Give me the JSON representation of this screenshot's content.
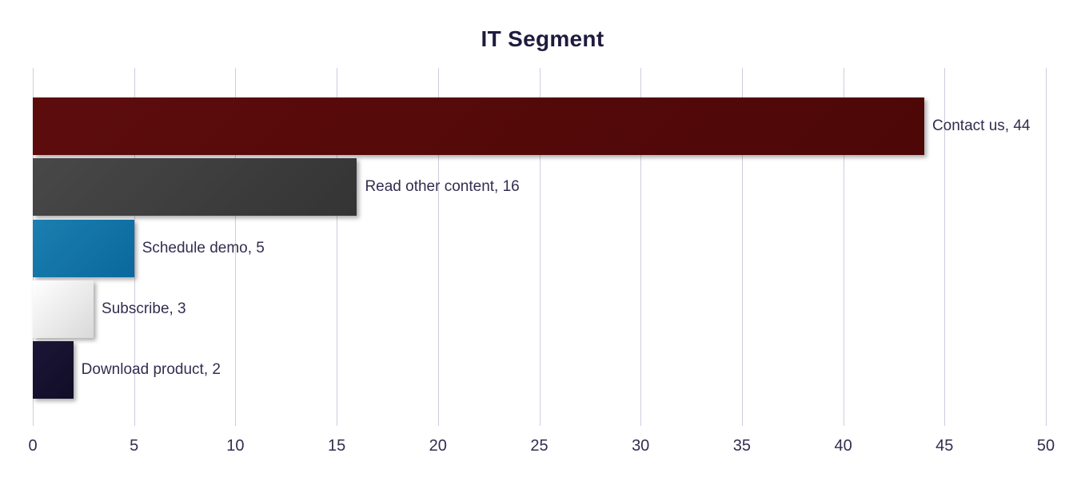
{
  "title": "IT Segment",
  "chart_data": {
    "type": "bar",
    "orientation": "horizontal",
    "title": "IT Segment",
    "categories": [
      "Contact us",
      "Read other content",
      "Schedule demo",
      "Subscribe",
      "Download product"
    ],
    "values": [
      44,
      16,
      5,
      3,
      2
    ],
    "data_labels": [
      "Contact us, 44",
      "Read other content, 16",
      "Schedule demo, 5",
      "Subscribe, 3",
      "Download product, 2"
    ],
    "xlabel": "",
    "ylabel": "",
    "xlim": [
      0,
      50
    ],
    "xticks": [
      0,
      5,
      10,
      15,
      20,
      25,
      30,
      35,
      40,
      45,
      50
    ],
    "grid": "vertical",
    "legend": "none"
  },
  "colors": {
    "background": "#ffffff",
    "title_text": "#1f1b3e",
    "label_text": "#312e4f",
    "tick_text": "#312e4f",
    "gridline": "#cfccdf",
    "bar_gradients": [
      {
        "from": "#5d0c0c",
        "to": "#4d0707"
      },
      {
        "from": "#484848",
        "to": "#343434"
      },
      {
        "from": "#1b7fb0",
        "to": "#0a689c"
      },
      {
        "from": "#ffffff",
        "to": "#d9d9d9"
      },
      {
        "from": "#1b1637",
        "to": "#110d26"
      }
    ]
  }
}
